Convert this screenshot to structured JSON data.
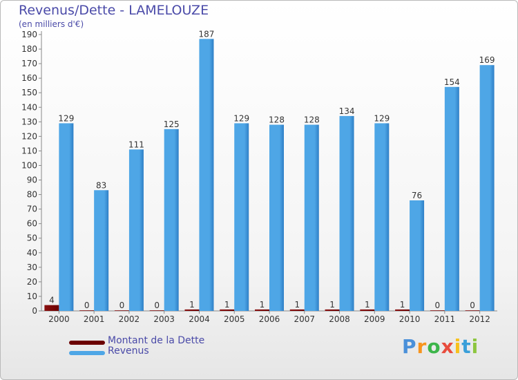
{
  "title": "Revenus/Dette - LAMELOUZE",
  "subtitle": "(en milliers d'€)",
  "logo": {
    "letters": [
      "P",
      "r",
      "o",
      "x",
      "i",
      "t",
      "i"
    ],
    "colors": [
      "#4a90d9",
      "#f7941d",
      "#3cb54a",
      "#e84c3d",
      "#f7c11d",
      "#3a9fd9",
      "#8dc63f"
    ]
  },
  "colors": {
    "dette": "#6b0000",
    "revenus": "#4ea6e6",
    "revenus_dark": "#2e7fc6"
  },
  "chart_data": {
    "type": "bar",
    "title": "Revenus/Dette - LAMELOUZE",
    "subtitle": "(en milliers d'€)",
    "categories": [
      "2000",
      "2001",
      "2002",
      "2003",
      "2004",
      "2005",
      "2006",
      "2007",
      "2008",
      "2009",
      "2010",
      "2011",
      "2012"
    ],
    "series": [
      {
        "name": "Montant de la Dette",
        "values": [
          4,
          0,
          0,
          0,
          1,
          1,
          1,
          1,
          1,
          1,
          1,
          0,
          0
        ]
      },
      {
        "name": "Revenus",
        "values": [
          129,
          83,
          111,
          125,
          187,
          129,
          128,
          128,
          134,
          129,
          76,
          154,
          169
        ]
      }
    ],
    "ylim": [
      0,
      190
    ],
    "yticks": [
      0,
      10,
      20,
      30,
      40,
      50,
      60,
      70,
      80,
      90,
      100,
      110,
      120,
      130,
      140,
      150,
      160,
      170,
      180,
      190
    ],
    "grid": false,
    "legend": "bottom-left"
  }
}
